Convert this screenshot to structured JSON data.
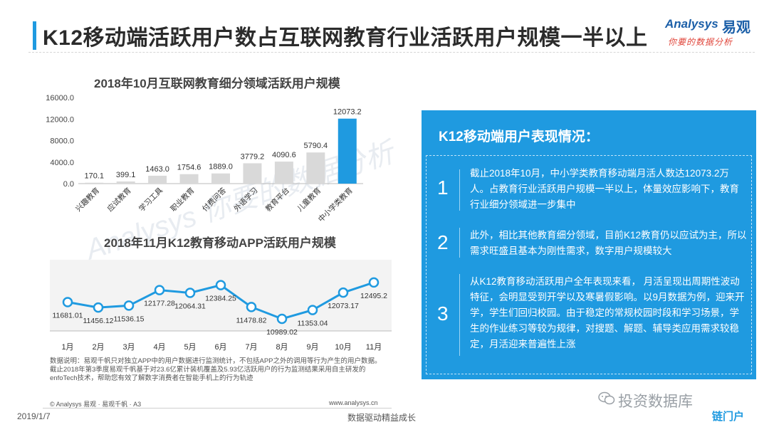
{
  "header": {
    "title": "K12移动端活跃用户数占互联网教育行业活跃用户规模一半以上",
    "logo_en": "Analysys",
    "logo_cn": "易观",
    "logo_tagline": "你要的数据分析"
  },
  "watermark": "Analysys 你要的数据分析",
  "chart1": {
    "title": "2018年10月互联网教育细分领域活跃用户规模",
    "bar_color": "#d9d9d9",
    "highlight_color": "#1f9ae0"
  },
  "chart2": {
    "title": "2018年11月K12教育移动APP活跃用户规模",
    "line_color": "#1f9ae0"
  },
  "chart_data": [
    {
      "type": "bar",
      "title": "2018年10月互联网教育细分领域活跃用户规模",
      "categories": [
        "兴趣教育",
        "应试教育",
        "学习工具",
        "职业教育",
        "付费问答",
        "外语学习",
        "教育平台",
        "儿童教育",
        "中小学类教育"
      ],
      "values": [
        170.1,
        399.1,
        1463.0,
        1754.6,
        1889.0,
        3779.2,
        4090.6,
        5790.4,
        12073.2
      ],
      "value_labels": [
        "170.1",
        "399.1",
        "1463.0",
        "1754.6",
        "1889.0",
        "3779.2",
        "4090.6",
        "5790.4",
        "12073.2"
      ],
      "yticks": [
        "0.0",
        "4000.0",
        "8000.0",
        "12000.0",
        "16000.0"
      ],
      "ylim": [
        0,
        16000
      ],
      "highlight_index": 8
    },
    {
      "type": "line",
      "title": "2018年11月K12教育移动APP活跃用户规模",
      "categories": [
        "1月",
        "2月",
        "3月",
        "4月",
        "5月",
        "6月",
        "7月",
        "8月",
        "9月",
        "10月",
        "11月"
      ],
      "values": [
        11681.01,
        11456.12,
        11536.15,
        12177.28,
        12064.31,
        12384.25,
        11478.82,
        10989.02,
        11353.04,
        12073.17,
        12495.2
      ],
      "value_labels": [
        "11681.01",
        "11456.12",
        "11536.15",
        "12177.28",
        "12064.31",
        "12384.25",
        "11478.82",
        "10989.02",
        "11353.04",
        "12073.17",
        "12495.2"
      ]
    }
  ],
  "note": "数据说明：易观千帆只对独立APP中的用户数据进行监测统计，不包括APP之外的调用等行为产生的用户数据。截止2018年第3季度易观千帆基于对23.6亿累计装机覆盖及5.93亿活跃用户的行为监测结果采用自主研发的enfoTech技术，帮助您有效了解数字消费者在智能手机上的行为轨迹",
  "footer": {
    "copyright": "© Analysys 易观 · 易观千帆 · A3",
    "url": "www.analysys.cn",
    "date": "2019/1/7",
    "slogan": "数据驱动精益成长"
  },
  "panel": {
    "title": "K12移动端用户表现情况：",
    "points": [
      {
        "num": "1",
        "text": "截止2018年10月，中小学类教育移动端月活人数达12073.2万人。占教育行业活跃用户规模一半以上，体量效应影响下，教育行业细分领域进一步集中"
      },
      {
        "num": "2",
        "text": "此外，相比其他教育细分领域，目前K12教育仍以应试为主，所以需求旺盛且基本为刚性需求，数字用户规模较大"
      },
      {
        "num": "3",
        "text": "从K12教育移动活跃用户全年表现来看， 月活呈现出周期性波动特征，会明显受到开学以及寒暑假影响。以9月数据为例，迎来开学，学生们回归校园。由于稳定的常规校园时段和学习场景，学生的作业练习等较为规律，对搜题、解题、辅导类应用需求较稳定，月活迎来普遍性上涨"
      }
    ]
  },
  "source_watermark": {
    "wechat": "投资数据库",
    "brand": "链门户"
  }
}
